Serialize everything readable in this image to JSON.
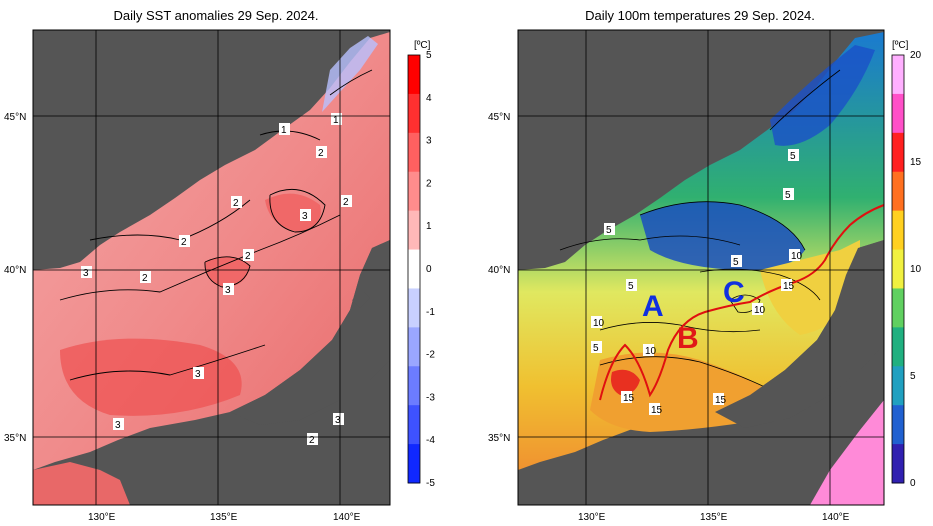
{
  "left_map": {
    "title": "Daily SST anomalies 29 Sep. 2024.",
    "unit": "[ºC]",
    "colorbar_ticks": [
      "5",
      "4",
      "3",
      "2",
      "1",
      "0",
      "-1",
      "-2",
      "-3",
      "-4",
      "-5"
    ],
    "colorbar_colors": [
      "#ff0000",
      "#ff3030",
      "#ff6060",
      "#ff8c8c",
      "#ffb8b8",
      "#ffffff",
      "#c8d0ff",
      "#9aa6ff",
      "#6c7cff",
      "#3e52ff",
      "#1028ff"
    ],
    "contour_labels": [
      "1",
      "1",
      "2",
      "2",
      "3",
      "2",
      "2",
      "2",
      "2",
      "3",
      "3",
      "3",
      "3",
      "3",
      "2"
    ]
  },
  "right_map": {
    "title": "Daily 100m temperatures 29 Sep. 2024.",
    "unit": "[ºC]",
    "colorbar_ticks": [
      "20",
      "15",
      "10",
      "5",
      "0"
    ],
    "colorbar_colors": [
      "#ffb0ff",
      "#ff50c8",
      "#ff2020",
      "#ff7020",
      "#ffd020",
      "#f0f040",
      "#60d060",
      "#20b080",
      "#20a0c0",
      "#2060d0",
      "#3020b0"
    ],
    "contour_labels": [
      "5",
      "5",
      "5",
      "5",
      "5",
      "10",
      "10",
      "10",
      "15",
      "10",
      "15",
      "15",
      "5",
      "15"
    ],
    "markers": [
      "A",
      "B",
      "C"
    ]
  },
  "axes": {
    "lat_labels": [
      "45°N",
      "40°N",
      "35°N"
    ],
    "lon_labels": [
      "130°E",
      "135°E",
      "140°E"
    ]
  },
  "colors": {
    "land": "#555555",
    "frame": "#000000",
    "grid": "#8a8a8a",
    "marker_blue": "#1030e0",
    "marker_red": "#e01818",
    "front_line": "#e01010"
  }
}
